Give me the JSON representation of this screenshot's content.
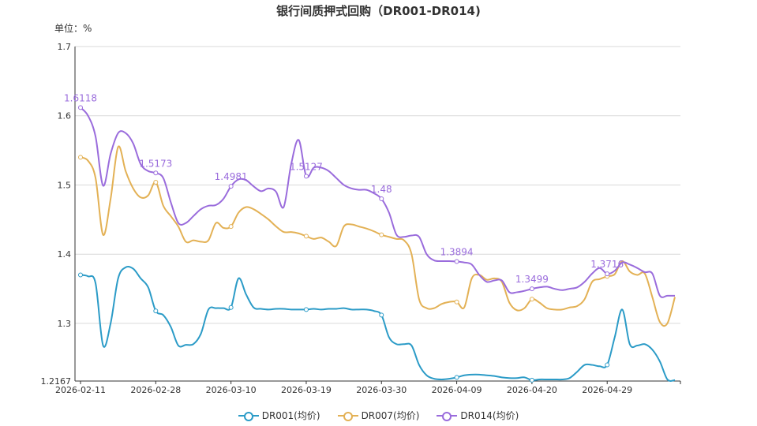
{
  "chart_data": {
    "type": "line",
    "title": "银行间质押式回购（DR001-DR014)",
    "ylabel": "单位：%",
    "ylim": [
      1.2167,
      1.7
    ],
    "yticks": [
      "1.2167",
      "1.3",
      "1.4",
      "1.5",
      "1.6",
      "1.7"
    ],
    "grid": true,
    "legend_position": "bottom",
    "x_tick_labels": [
      "2026-02-11",
      "2026-02-28",
      "2026-03-10",
      "2026-03-19",
      "2026-03-30",
      "2026-04-09",
      "2026-04-20",
      "2026-04-29"
    ],
    "x_tick_index": [
      0,
      10,
      20,
      30,
      40,
      50,
      60,
      70
    ],
    "x_count": 80,
    "series": [
      {
        "name": "DR001(均价)",
        "color": "#2b9bc7",
        "values": [
          1.37,
          1.368,
          1.358,
          1.268,
          1.3,
          1.365,
          1.381,
          1.379,
          1.365,
          1.352,
          1.318,
          1.312,
          1.295,
          1.268,
          1.269,
          1.27,
          1.285,
          1.32,
          1.322,
          1.322,
          1.323,
          1.365,
          1.342,
          1.323,
          1.321,
          1.32,
          1.321,
          1.321,
          1.32,
          1.32,
          1.32,
          1.321,
          1.32,
          1.321,
          1.321,
          1.322,
          1.32,
          1.32,
          1.32,
          1.318,
          1.312,
          1.28,
          1.27,
          1.27,
          1.268,
          1.24,
          1.225,
          1.22,
          1.219,
          1.22,
          1.222,
          1.225,
          1.226,
          1.226,
          1.225,
          1.224,
          1.222,
          1.221,
          1.221,
          1.222,
          1.218,
          1.219,
          1.219,
          1.219,
          1.219,
          1.221,
          1.23,
          1.24,
          1.24,
          1.238,
          1.24,
          1.28,
          1.32,
          1.27,
          1.268,
          1.27,
          1.262,
          1.245,
          1.219,
          1.218
        ],
        "labels": [],
        "marked_index": [
          0,
          10,
          20,
          30,
          40,
          50,
          60,
          70
        ]
      },
      {
        "name": "DR007(均价)",
        "color": "#e3b155",
        "values": [
          1.54,
          1.535,
          1.51,
          1.428,
          1.48,
          1.555,
          1.52,
          1.495,
          1.482,
          1.485,
          1.504,
          1.47,
          1.455,
          1.44,
          1.418,
          1.42,
          1.418,
          1.42,
          1.445,
          1.438,
          1.44,
          1.46,
          1.468,
          1.465,
          1.458,
          1.45,
          1.44,
          1.432,
          1.432,
          1.43,
          1.426,
          1.422,
          1.424,
          1.418,
          1.412,
          1.44,
          1.443,
          1.44,
          1.437,
          1.433,
          1.428,
          1.425,
          1.422,
          1.42,
          1.4,
          1.335,
          1.322,
          1.322,
          1.328,
          1.331,
          1.331,
          1.323,
          1.365,
          1.37,
          1.363,
          1.365,
          1.36,
          1.33,
          1.319,
          1.322,
          1.335,
          1.33,
          1.322,
          1.32,
          1.32,
          1.323,
          1.325,
          1.335,
          1.36,
          1.364,
          1.368,
          1.371,
          1.39,
          1.375,
          1.37,
          1.372,
          1.338,
          1.302,
          1.3,
          1.338
        ],
        "labels": [],
        "marked_index": [
          0,
          10,
          20,
          30,
          40,
          50,
          60,
          70
        ]
      },
      {
        "name": "DR014(均价)",
        "color": "#9a6cdc",
        "values": [
          1.6118,
          1.6,
          1.57,
          1.499,
          1.545,
          1.575,
          1.575,
          1.56,
          1.53,
          1.52,
          1.5173,
          1.51,
          1.475,
          1.445,
          1.445,
          1.455,
          1.465,
          1.47,
          1.471,
          1.48,
          1.4981,
          1.508,
          1.507,
          1.498,
          1.491,
          1.495,
          1.49,
          1.468,
          1.53,
          1.565,
          1.5127,
          1.525,
          1.525,
          1.52,
          1.51,
          1.5,
          1.495,
          1.493,
          1.493,
          1.488,
          1.48,
          1.46,
          1.428,
          1.425,
          1.427,
          1.425,
          1.4,
          1.391,
          1.39,
          1.39,
          1.3894,
          1.388,
          1.385,
          1.37,
          1.36,
          1.362,
          1.362,
          1.345,
          1.345,
          1.347,
          1.3499,
          1.352,
          1.353,
          1.35,
          1.348,
          1.35,
          1.352,
          1.36,
          1.372,
          1.38,
          1.3716,
          1.376,
          1.388,
          1.385,
          1.38,
          1.374,
          1.372,
          1.34,
          1.34,
          1.34
        ],
        "labels": [
          "1.6118",
          "1.5173",
          "1.4981",
          "1.5127",
          "1.48",
          "1.3894",
          "1.3499",
          "1.3716"
        ],
        "marked_index": [
          0,
          10,
          20,
          30,
          40,
          50,
          60,
          70
        ]
      }
    ]
  }
}
